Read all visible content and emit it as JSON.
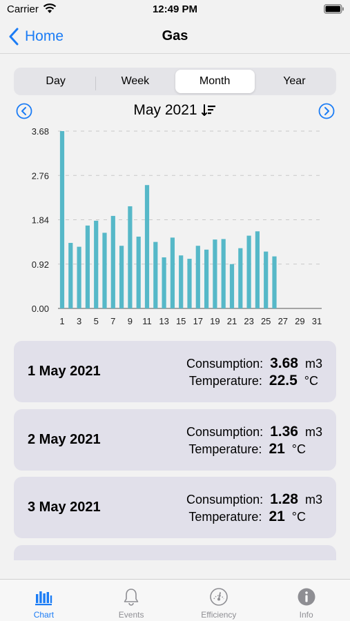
{
  "status": {
    "carrier": "Carrier",
    "time": "12:49 PM"
  },
  "nav": {
    "back_label": "Home",
    "title": "Gas"
  },
  "segments": [
    {
      "label": "Day",
      "active": false
    },
    {
      "label": "Week",
      "active": false
    },
    {
      "label": "Month",
      "active": true
    },
    {
      "label": "Year",
      "active": false
    }
  ],
  "period": {
    "label": "May 2021"
  },
  "colors": {
    "accent": "#1b7cf5",
    "bar": "#56b8c8",
    "card": "#e1e0ea"
  },
  "chart_data": {
    "type": "bar",
    "x": [
      1,
      2,
      3,
      4,
      5,
      6,
      7,
      8,
      9,
      10,
      11,
      12,
      13,
      14,
      15,
      16,
      17,
      18,
      19,
      20,
      21,
      22,
      23,
      24,
      25,
      26,
      27,
      28,
      29,
      30,
      31
    ],
    "values": [
      3.68,
      1.36,
      1.28,
      1.72,
      1.82,
      1.57,
      1.92,
      1.3,
      2.12,
      1.49,
      2.56,
      1.38,
      1.06,
      1.47,
      1.1,
      1.03,
      1.3,
      1.22,
      1.43,
      1.44,
      0.92,
      1.25,
      1.51,
      1.6,
      1.18,
      1.08,
      null,
      null,
      null,
      null,
      null
    ],
    "y_ticks": [
      "0.00",
      "0.92",
      "1.84",
      "2.76",
      "3.68"
    ],
    "x_ticks": [
      "1",
      "3",
      "5",
      "7",
      "9",
      "11",
      "13",
      "15",
      "17",
      "19",
      "21",
      "23",
      "25",
      "27",
      "29",
      "31"
    ],
    "ylim": [
      0,
      3.68
    ],
    "grid": "horizontal-dashed"
  },
  "days": [
    {
      "date": "1 May 2021",
      "consumption_label": "Consumption:",
      "consumption": "3.68",
      "consumption_unit": "m3",
      "temperature_label": "Temperature:",
      "temperature": "22.5",
      "temperature_unit": "°C"
    },
    {
      "date": "2 May 2021",
      "consumption_label": "Consumption:",
      "consumption": "1.36",
      "consumption_unit": "m3",
      "temperature_label": "Temperature:",
      "temperature": "21",
      "temperature_unit": "°C"
    },
    {
      "date": "3 May 2021",
      "consumption_label": "Consumption:",
      "consumption": "1.28",
      "consumption_unit": "m3",
      "temperature_label": "Temperature:",
      "temperature": "21",
      "temperature_unit": "°C"
    }
  ],
  "tabs": [
    {
      "label": "Chart",
      "icon": "bar-chart-icon",
      "active": true
    },
    {
      "label": "Events",
      "icon": "bell-icon",
      "active": false
    },
    {
      "label": "Efficiency",
      "icon": "gauge-icon",
      "active": false
    },
    {
      "label": "Info",
      "icon": "info-icon",
      "active": false
    }
  ]
}
